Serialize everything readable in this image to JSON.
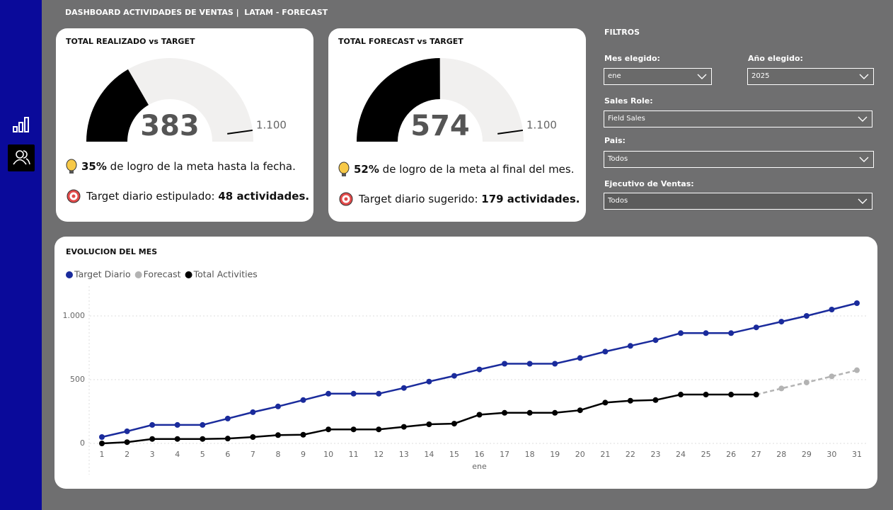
{
  "header": {
    "title": "DASHBOARD ACTIVIDADES DE VENTAS |  LATAM - FORECAST"
  },
  "gauges": [
    {
      "title": "TOTAL REALIZADO vs TARGET",
      "value": 383,
      "range": [
        0,
        1150
      ],
      "target": {
        "value": 1100,
        "label": "1.100"
      },
      "color": "#000000",
      "track_color": "#f1f0ef",
      "lines": [
        [
          {
            "text": "35%",
            "bold": true
          },
          {
            "text": " de logro de la meta hasta la fecha.",
            "bold": false
          }
        ],
        [
          {
            "text": "Target diario estipulado: ",
            "bold": false
          },
          {
            "text": "48 actividades.",
            "bold": true
          }
        ]
      ]
    },
    {
      "title": "TOTAL FORECAST vs TARGET",
      "value": 574,
      "range": [
        0,
        1150
      ],
      "target": {
        "value": 1100,
        "label": "1.100"
      },
      "color": "#000000",
      "track_color": "#f1f0ef",
      "lines": [
        [
          {
            "text": "52%",
            "bold": true
          },
          {
            "text": " de logro de la meta al final del mes.",
            "bold": false
          }
        ],
        [
          {
            "text": "Target diario sugerido: ",
            "bold": false
          },
          {
            "text": "179 actividades.",
            "bold": true
          }
        ]
      ]
    }
  ],
  "filters": {
    "title": "FILTROS",
    "items": [
      {
        "label": "Mes elegido:",
        "value": "ene"
      },
      {
        "label": "Año elegido:",
        "value": "2025"
      },
      {
        "label": "Sales Role:",
        "value": "Field Sales"
      },
      {
        "label": "Pais:",
        "value": "Todos"
      },
      {
        "label": "Ejecutivo de Ventas:",
        "value": "Todos"
      }
    ]
  },
  "chart_data": {
    "type": "line",
    "title": "EVOLUCION DEL MES",
    "xlabel": "ene",
    "categories": [
      "1",
      "2",
      "3",
      "4",
      "5",
      "6",
      "7",
      "8",
      "9",
      "10",
      "11",
      "12",
      "13",
      "14",
      "15",
      "16",
      "17",
      "18",
      "19",
      "20",
      "21",
      "22",
      "23",
      "24",
      "25",
      "26",
      "27",
      "28",
      "29",
      "30",
      "31"
    ],
    "series": [
      {
        "name": "Target Diario",
        "color": "#1a2b9c",
        "line_style": "solid",
        "values": [
          50,
          95,
          145,
          145,
          145,
          195,
          245,
          290,
          340,
          390,
          390,
          390,
          435,
          485,
          530,
          580,
          625,
          625,
          625,
          670,
          720,
          765,
          810,
          865,
          865,
          865,
          910,
          955,
          1000,
          1050,
          1100
        ]
      },
      {
        "name": "Forecast",
        "color": "#b3b3b3",
        "line_style": "dashed",
        "values": [
          null,
          null,
          null,
          null,
          null,
          null,
          null,
          null,
          null,
          null,
          null,
          null,
          null,
          null,
          null,
          null,
          null,
          null,
          null,
          null,
          null,
          null,
          null,
          null,
          null,
          null,
          383,
          431,
          478,
          526,
          574
        ]
      },
      {
        "name": "Total Activities",
        "color": "#000000",
        "line_style": "solid",
        "values": [
          0,
          10,
          35,
          35,
          35,
          38,
          50,
          65,
          68,
          110,
          110,
          110,
          130,
          150,
          155,
          225,
          240,
          240,
          240,
          260,
          320,
          335,
          340,
          383,
          383,
          383,
          383,
          null,
          null,
          null,
          null
        ]
      }
    ],
    "ylim": [
      0,
      1200
    ],
    "yticks": [
      0,
      500,
      {
        "value": 1000,
        "label": "1.000"
      }
    ],
    "grid": true
  }
}
